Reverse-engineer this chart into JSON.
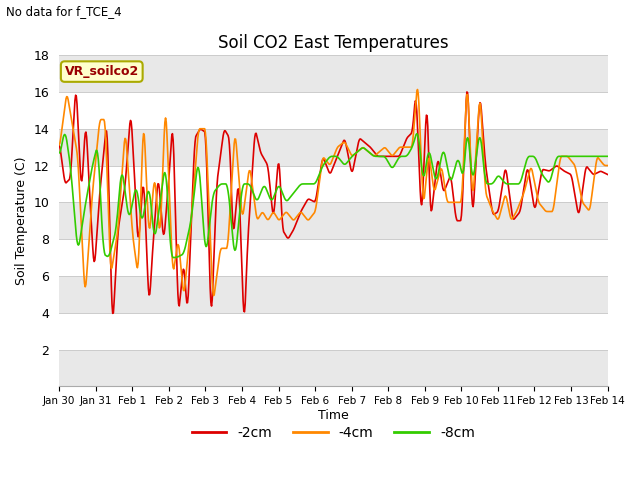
{
  "title": "Soil CO2 East Temperatures",
  "subtitle": "No data for f_TCE_4",
  "xlabel": "Time",
  "ylabel": "Soil Temperature (C)",
  "legend_label": "VR_soilco2",
  "series_labels": [
    "-2cm",
    "-4cm",
    "-8cm"
  ],
  "series_colors": [
    "#dd0000",
    "#ff8800",
    "#33cc00"
  ],
  "ylim": [
    0,
    18
  ],
  "xlim": [
    0,
    15
  ],
  "xtick_labels": [
    "Jan 30",
    "Jan 31",
    "Feb 1",
    "Feb 2",
    "Feb 3",
    "Feb 4",
    "Feb 5",
    "Feb 6",
    "Feb 7",
    "Feb 8",
    "Feb 9",
    "Feb 10",
    "Feb 11",
    "Feb 12",
    "Feb 13",
    "Feb 14"
  ],
  "xtick_positions": [
    0,
    1,
    2,
    3,
    4,
    5,
    6,
    7,
    8,
    9,
    10,
    11,
    12,
    13,
    14,
    15
  ],
  "ytick_positions": [
    0,
    2,
    4,
    6,
    8,
    10,
    12,
    14,
    16,
    18
  ],
  "background_color": "#ffffff",
  "band_color": "#e8e8e8",
  "grid_color": "#cccccc",
  "line_width": 1.2,
  "figsize": [
    6.4,
    4.8
  ],
  "dpi": 100
}
